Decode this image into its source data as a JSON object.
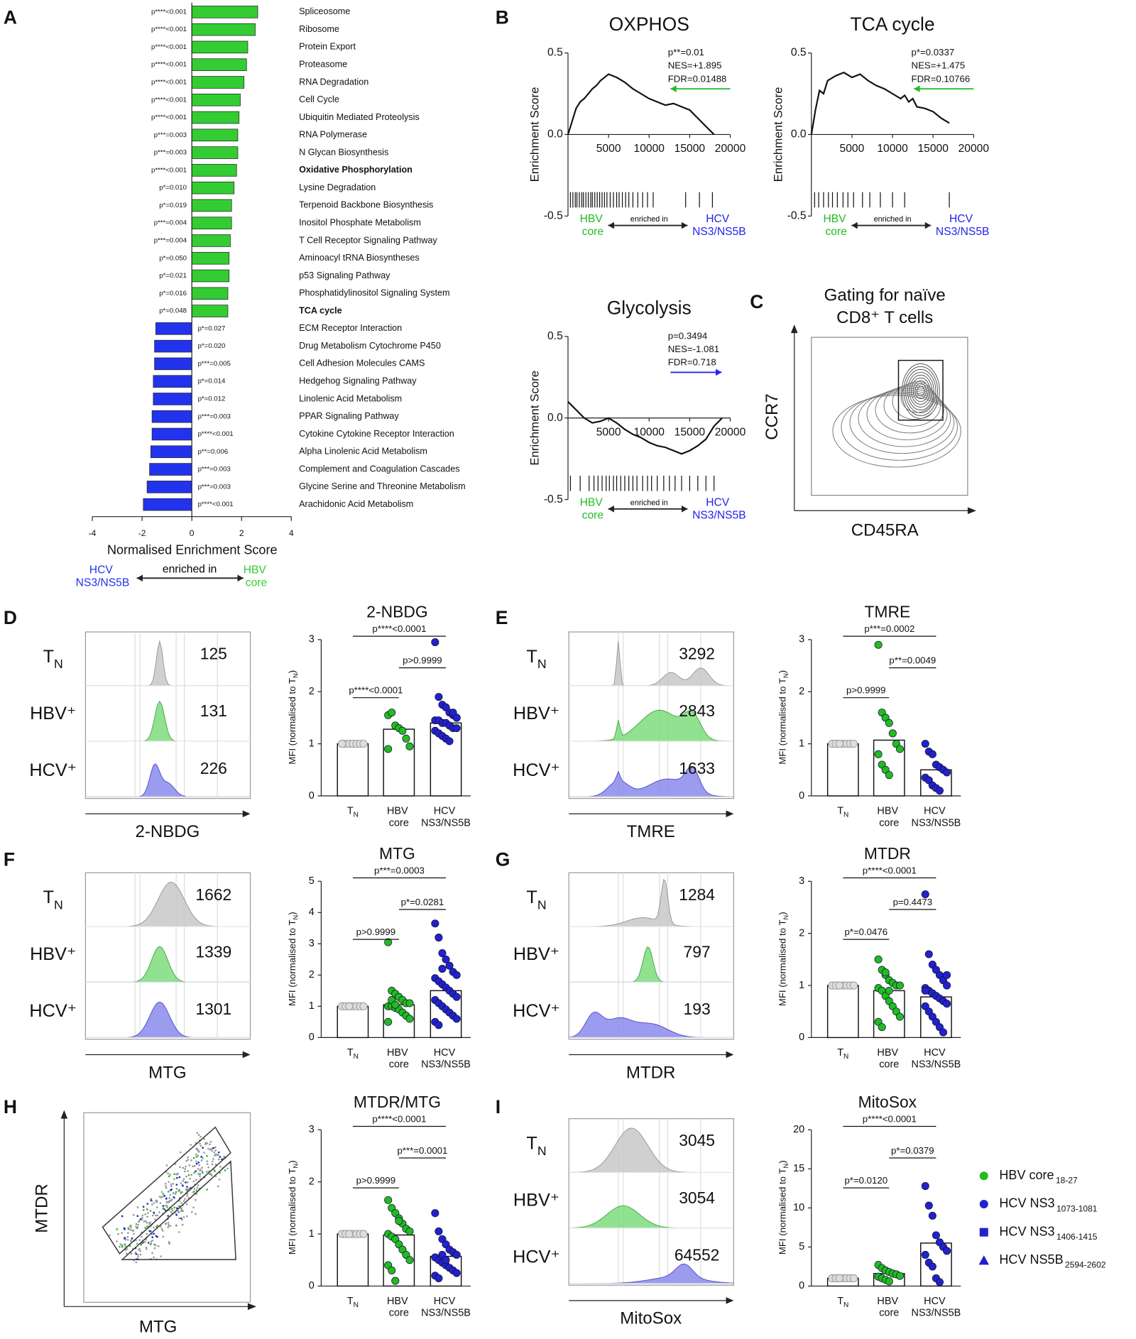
{
  "chart_data": [
    {
      "panel": "A",
      "type": "hbar",
      "categories": [
        "Spliceosome",
        "Ribosome",
        "Protein Export",
        "Proteasome",
        "RNA Degradation",
        "Cell Cycle",
        "Ubiquitin Mediated Proteolysis",
        "RNA Polymerase",
        "N Glycan Biosynthesis",
        "Oxidative Phosphorylation",
        "Lysine Degradation",
        "Terpenoid Backbone Biosynthesis",
        "Inositol Phosphate Metabolism",
        "T Cell Receptor Signaling Pathway",
        "Aminoacyl tRNA Biosyntheses",
        "p53 Signaling Pathway",
        "Phosphatidylinositol Signaling System",
        "TCA cycle",
        "ECM Receptor Interaction",
        "Drug Metabolism Cytochrome P450",
        "Cell Adhesion Molecules CAMS",
        "Hedgehog Signaling Pathway",
        "Linolenic Acid Metabolism",
        "PPAR Signaling Pathway",
        "Cytokine Cytokine Receptor Interaction",
        "Alpha Linolenic Acid Metabolism",
        "Complement and Coagulation Cascades",
        "Glycine Serine and Threonine Metabolism",
        "Arachidonic Acid Metabolism"
      ],
      "values": [
        2.65,
        2.55,
        2.25,
        2.2,
        2.1,
        1.95,
        1.9,
        1.85,
        1.85,
        1.8,
        1.7,
        1.6,
        1.6,
        1.55,
        1.5,
        1.5,
        1.45,
        1.45,
        -1.45,
        -1.5,
        -1.5,
        -1.55,
        -1.55,
        -1.6,
        -1.6,
        -1.65,
        -1.7,
        -1.8,
        -1.95
      ],
      "p_labels": [
        "p****<0.001",
        "p****<0.001",
        "p****<0.001",
        "p****<0.001",
        "p****<0.001",
        "p****<0.001",
        "p****<0.001",
        "p***=0.003",
        "p***=0.003",
        "p****<0.001",
        "p*=0.010",
        "p*=0.019",
        "p***=0.004",
        "p***=0.004",
        "p*=0.050",
        "p*=0.021",
        "p*=0.016",
        "p*=0.048",
        "p*=0.027",
        "p*=0.020",
        "p***=0.005",
        "p*=0.014",
        "p*=0.012",
        "p***=0.003",
        "p****<0.001",
        "p**=0.006",
        "p***=0.003",
        "p***=0.003",
        "p****<0.001"
      ],
      "bold": [
        9,
        17
      ],
      "positive_color": "#33cc33",
      "negative_color": "#2233ee",
      "xlabel": "Normalised Enrichment Score",
      "xlim": [
        -4,
        4
      ],
      "xticks": [
        -4,
        -2,
        0,
        2,
        4
      ],
      "direction_labels": [
        "HCV NS3/NS5B",
        "enriched in",
        "HBV core"
      ],
      "direction_colors": [
        "#2233ee",
        "#000000",
        "#33cc33"
      ]
    },
    {
      "panel": "B",
      "type": "gsea",
      "title": "OXPHOS",
      "ylabel": "Enrichment Score",
      "x": [
        0,
        500,
        1000,
        1500,
        2000,
        2500,
        3000,
        3500,
        4000,
        4500,
        5000,
        5500,
        6000,
        7000,
        8000,
        9000,
        10000,
        11000,
        12000,
        13000,
        14000,
        15000,
        16000,
        17000,
        18000
      ],
      "values": [
        0,
        0.08,
        0.16,
        0.2,
        0.22,
        0.25,
        0.28,
        0.3,
        0.33,
        0.35,
        0.37,
        0.36,
        0.35,
        0.32,
        0.28,
        0.25,
        0.22,
        0.2,
        0.18,
        0.19,
        0.17,
        0.15,
        0.1,
        0.05,
        0
      ],
      "hits": [
        300,
        600,
        900,
        1100,
        1400,
        1700,
        1900,
        2200,
        2500,
        2800,
        3000,
        3300,
        3600,
        3900,
        4200,
        4500,
        4800,
        5200,
        5600,
        6000,
        6300,
        6700,
        7100,
        7500,
        8000,
        8600,
        9200,
        9800,
        10500,
        14500,
        16200,
        17800
      ],
      "xlim": [
        0,
        20000
      ],
      "xticks": [
        5000,
        10000,
        15000,
        20000
      ],
      "ylim": [
        -0.5,
        0.5
      ],
      "yticks": [
        -0.5,
        {
          "value": 0,
          "label": "0.0"
        },
        0.5
      ],
      "stats": [
        "p**=0.01",
        "NES=+1.895",
        "FDR=0.01488"
      ],
      "arrow": "left",
      "arrow_color": "#22bb22",
      "direction_labels": [
        "HBV core",
        "enriched in",
        "HCV NS3/NS5B"
      ],
      "direction_colors": [
        "#22bb22",
        "#000000",
        "#2222ee"
      ]
    },
    {
      "type": "gsea",
      "title": "TCA cycle",
      "ylabel": "Enrichment Score",
      "x": [
        0,
        500,
        1000,
        1500,
        2000,
        3000,
        4000,
        5000,
        6000,
        7000,
        8000,
        9000,
        10000,
        11000,
        11500,
        12000,
        12500,
        13000,
        14000,
        15000,
        16000,
        17000
      ],
      "values": [
        0,
        0.15,
        0.27,
        0.25,
        0.33,
        0.36,
        0.38,
        0.35,
        0.37,
        0.33,
        0.3,
        0.28,
        0.25,
        0.22,
        0.24,
        0.2,
        0.22,
        0.17,
        0.16,
        0.14,
        0.1,
        0.07
      ],
      "hits": [
        400,
        900,
        1500,
        2100,
        2600,
        3200,
        3900,
        4500,
        5200,
        6300,
        7200,
        8500,
        10000,
        11500,
        17000
      ],
      "xlim": [
        0,
        20000
      ],
      "xticks": [
        5000,
        10000,
        15000,
        20000
      ],
      "ylim": [
        -0.5,
        0.5
      ],
      "yticks": [
        -0.5,
        {
          "value": 0,
          "label": "0.0"
        },
        0.5
      ],
      "stats": [
        "p*=0.0337",
        "NES=+1.475",
        "FDR=0.10766"
      ],
      "arrow": "left",
      "arrow_color": "#22bb22",
      "direction_labels": [
        "HBV core",
        "enriched in",
        "HCV NS3/NS5B"
      ],
      "direction_colors": [
        "#22bb22",
        "#000000",
        "#2222ee"
      ]
    },
    {
      "type": "gsea",
      "title": "Glycolysis",
      "ylabel": "Enrichment Score",
      "x": [
        0,
        1000,
        2000,
        3000,
        4000,
        5000,
        6000,
        7000,
        8000,
        9000,
        10000,
        11000,
        12000,
        13000,
        14000,
        15000,
        16000,
        17000,
        18000,
        19000
      ],
      "values": [
        0.1,
        0.05,
        0,
        -0.03,
        -0.02,
        0,
        -0.03,
        -0.07,
        -0.1,
        -0.12,
        -0.15,
        -0.17,
        -0.18,
        -0.2,
        -0.22,
        -0.2,
        -0.17,
        -0.13,
        -0.05,
        0
      ],
      "hits": [
        300,
        1500,
        2600,
        3200,
        3700,
        4200,
        4700,
        5100,
        5600,
        6000,
        6500,
        7000,
        7500,
        8000,
        8500,
        9200,
        9800,
        10300,
        11000,
        11800,
        12500,
        13200,
        14000,
        15000,
        16000,
        17000,
        18000
      ],
      "xlim": [
        0,
        20000
      ],
      "xticks": [
        5000,
        10000,
        15000,
        20000
      ],
      "ylim": [
        -0.5,
        0.5
      ],
      "yticks": [
        -0.5,
        {
          "value": 0,
          "label": "0.0"
        },
        0.5
      ],
      "stats": [
        "p=0.3494",
        "NES=-1.081",
        "FDR=0.718"
      ],
      "arrow": "right",
      "arrow_color": "#2222ee",
      "direction_labels": [
        "HBV core",
        "enriched in",
        "HCV NS3/NS5B"
      ],
      "direction_colors": [
        "#22bb22",
        "#000000",
        "#2222ee"
      ]
    },
    {
      "panel": "C",
      "type": "contour",
      "title": [
        "Gating for naïve",
        "CD8⁺ T cells"
      ],
      "xlabel": "CD45RA",
      "ylabel": "CCR7"
    },
    {
      "panel": "D",
      "type": "histogram-stack",
      "categories": [
        "TN",
        "HBV⁺",
        "HCV⁺"
      ],
      "values": [
        125,
        131,
        226
      ],
      "xlabel": "2-NBDG",
      "colors": [
        "#c8c8c8",
        "#7ddc7d",
        "#8a8aee"
      ]
    },
    {
      "type": "dot-bar",
      "title": "2-NBDG",
      "ylabel": "MFI (normalised to TN)",
      "categories": [
        "TN",
        "HBV core",
        "HCV NS3/NS5B"
      ],
      "values": [
        1,
        1.28,
        1.4
      ],
      "points": [
        [
          1,
          1,
          1,
          1,
          1,
          1,
          1,
          1
        ],
        [
          1.55,
          1.6,
          1.35,
          1.3,
          1.25,
          1.1,
          0.95,
          0.9
        ],
        [
          2.95,
          1.9,
          1.75,
          1.7,
          1.6,
          1.55,
          1.5,
          1.45,
          1.45,
          1.4,
          1.4,
          1.35,
          1.3,
          1.3,
          1.25,
          1.2,
          1.15,
          1.1,
          1.05,
          1.6,
          1.5
        ]
      ],
      "point_colors": [
        "#dddddd",
        "#22bb22",
        "#2222cc"
      ],
      "ylim": [
        0,
        3
      ],
      "yticks": [
        0,
        1,
        2,
        3
      ],
      "comparisons": [
        {
          "groups": [
            0,
            2
          ],
          "label": "p****<0.0001"
        },
        {
          "groups": [
            1,
            2
          ],
          "label": "p>0.9999"
        },
        {
          "groups": [
            0,
            1
          ],
          "label": "p****<0.0001"
        }
      ]
    },
    {
      "panel": "E",
      "type": "histogram-stack",
      "categories": [
        "TN",
        "HBV⁺",
        "HCV⁺"
      ],
      "values": [
        3292,
        2843,
        1633
      ],
      "xlabel": "TMRE",
      "colors": [
        "#c8c8c8",
        "#7ddc7d",
        "#8a8aee"
      ]
    },
    {
      "type": "dot-bar",
      "title": "TMRE",
      "ylabel": "MFI (normalised to TN)",
      "categories": [
        "TN",
        "HBV core",
        "HCV NS3/NS5B"
      ],
      "values": [
        1,
        1.07,
        0.5
      ],
      "points": [
        [
          1,
          1,
          1,
          1,
          1,
          1,
          1,
          1,
          1,
          1
        ],
        [
          2.9,
          1.6,
          1.5,
          1.4,
          1.2,
          1,
          0.9,
          0.8,
          0.6,
          0.5,
          0.4
        ],
        [
          1,
          0.85,
          0.8,
          0.6,
          0.55,
          0.5,
          0.45,
          0.35,
          0.3,
          0.2,
          0.15,
          0.1
        ]
      ],
      "point_colors": [
        "#dddddd",
        "#22bb22",
        "#2222cc"
      ],
      "ylim": [
        0,
        3
      ],
      "yticks": [
        0,
        1,
        2,
        3
      ],
      "comparisons": [
        {
          "groups": [
            0,
            2
          ],
          "label": "p***=0.0002"
        },
        {
          "groups": [
            1,
            2
          ],
          "label": "p**=0.0049"
        },
        {
          "groups": [
            0,
            1
          ],
          "label": "p>0.9999"
        }
      ]
    },
    {
      "panel": "F",
      "type": "histogram-stack",
      "categories": [
        "TN",
        "HBV⁺",
        "HCV⁺"
      ],
      "values": [
        1662,
        1339,
        1301
      ],
      "xlabel": "MTG",
      "colors": [
        "#c8c8c8",
        "#7ddc7d",
        "#8a8aee"
      ]
    },
    {
      "type": "dot-bar",
      "title": "MTG",
      "ylabel": "MFI (normalised to TN)",
      "categories": [
        "TN",
        "HBV core",
        "HCV NS3/NS5B"
      ],
      "values": [
        1,
        1.05,
        1.5
      ],
      "points": [
        [
          1,
          1,
          1,
          1,
          1,
          1,
          1,
          1,
          1,
          1
        ],
        [
          3.05,
          1.5,
          1.4,
          1.3,
          1.2,
          1.1,
          1.1,
          1,
          1,
          0.95,
          0.9,
          0.8,
          0.7,
          0.6,
          0.5,
          1.2,
          1.05
        ],
        [
          3.65,
          3.2,
          2.7,
          2.5,
          2.3,
          2.1,
          2,
          1.9,
          1.8,
          1.7,
          1.6,
          1.5,
          1.4,
          1.3,
          1.2,
          1.1,
          1,
          0.9,
          0.8,
          0.7,
          0.6,
          0.5,
          0.4,
          2.2
        ]
      ],
      "point_colors": [
        "#dddddd",
        "#22bb22",
        "#2222cc"
      ],
      "ylim": [
        0,
        5
      ],
      "yticks": [
        0,
        1,
        2,
        3,
        4,
        5
      ],
      "comparisons": [
        {
          "groups": [
            0,
            2
          ],
          "label": "p***=0.0003"
        },
        {
          "groups": [
            1,
            2
          ],
          "label": "p*=0.0281"
        },
        {
          "groups": [
            0,
            1
          ],
          "label": "p>0.9999"
        }
      ]
    },
    {
      "panel": "G",
      "type": "histogram-stack",
      "categories": [
        "TN",
        "HBV⁺",
        "HCV⁺"
      ],
      "values": [
        1284,
        797,
        193
      ],
      "xlabel": "MTDR",
      "colors": [
        "#c8c8c8",
        "#7ddc7d",
        "#8a8aee"
      ]
    },
    {
      "type": "dot-bar",
      "title": "MTDR",
      "ylabel": "MFI (normalised to TN)",
      "categories": [
        "TN",
        "HBV core",
        "HCV NS3/NS5B"
      ],
      "values": [
        1,
        0.9,
        0.78
      ],
      "points": [
        [
          1,
          1,
          1,
          1,
          1,
          1,
          1,
          1,
          1,
          1
        ],
        [
          1.5,
          1.3,
          1.2,
          1.1,
          1.05,
          1,
          1,
          0.95,
          0.9,
          0.8,
          0.7,
          0.6,
          0.5,
          0.4,
          0.3,
          0.2,
          1.25,
          0.9
        ],
        [
          2.75,
          1.6,
          1.4,
          1.3,
          1.2,
          1.1,
          1,
          0.95,
          0.9,
          0.85,
          0.8,
          0.75,
          0.7,
          0.65,
          0.6,
          0.5,
          0.4,
          0.3,
          0.2,
          0.1,
          1.2,
          0.9
        ]
      ],
      "point_colors": [
        "#dddddd",
        "#22bb22",
        "#2222cc"
      ],
      "ylim": [
        0,
        3
      ],
      "yticks": [
        0,
        1,
        2,
        3
      ],
      "comparisons": [
        {
          "groups": [
            0,
            2
          ],
          "label": "p****<0.0001"
        },
        {
          "groups": [
            1,
            2
          ],
          "label": "p=0.4473"
        },
        {
          "groups": [
            0,
            1
          ],
          "label": "p*=0.0476"
        }
      ]
    },
    {
      "panel": "H",
      "type": "gate-scatter",
      "xlabel": "MTG",
      "ylabel": "MTDR"
    },
    {
      "type": "dot-bar",
      "title": "MTDR/MTG",
      "ylabel": "MFI (normalised to TN)",
      "categories": [
        "TN",
        "HBV core",
        "HCV NS3/NS5B"
      ],
      "values": [
        1,
        0.98,
        0.57
      ],
      "points": [
        [
          1,
          1,
          1,
          1,
          1,
          1,
          1,
          1,
          1,
          1
        ],
        [
          1.65,
          1.5,
          1.4,
          1.3,
          1.2,
          1.1,
          1.05,
          1,
          0.95,
          0.9,
          0.8,
          0.7,
          0.6,
          0.5,
          0.4,
          0.3,
          0.1,
          1.25
        ],
        [
          1.4,
          1.05,
          0.9,
          0.8,
          0.7,
          0.65,
          0.6,
          0.55,
          0.5,
          0.45,
          0.4,
          0.35,
          0.3,
          0.25,
          0.2,
          0.15,
          0.6,
          0.5
        ]
      ],
      "point_colors": [
        "#dddddd",
        "#22bb22",
        "#2222cc"
      ],
      "ylim": [
        0,
        3
      ],
      "yticks": [
        0,
        1,
        2,
        3
      ],
      "comparisons": [
        {
          "groups": [
            0,
            2
          ],
          "label": "p****<0.0001"
        },
        {
          "groups": [
            1,
            2
          ],
          "label": "p***=0.0001"
        },
        {
          "groups": [
            0,
            1
          ],
          "label": "p>0.9999"
        }
      ]
    },
    {
      "panel": "I",
      "type": "histogram-stack",
      "categories": [
        "TN",
        "HBV⁺",
        "HCV⁺"
      ],
      "values": [
        3045,
        3054,
        64552
      ],
      "xlabel": "MitoSox",
      "colors": [
        "#c8c8c8",
        "#7ddc7d",
        "#8a8aee"
      ]
    },
    {
      "type": "dot-bar",
      "title": "MitoSox",
      "ylabel": "MFI (normalised to TN)",
      "categories": [
        "TN",
        "HBV core",
        "HCV NS3/NS5B"
      ],
      "values": [
        1,
        1.6,
        5.5
      ],
      "points": [
        [
          1,
          1,
          1,
          1,
          1,
          1,
          1,
          1,
          1,
          1
        ],
        [
          2.7,
          2.3,
          2,
          1.8,
          1.6,
          1.5,
          1.3,
          1.2,
          1,
          0.8,
          0.6
        ],
        [
          12.8,
          10.3,
          9,
          6.5,
          5.6,
          5,
          4.5,
          4,
          3,
          2.5,
          1,
          0.5
        ]
      ],
      "point_colors": [
        "#dddddd",
        "#22bb22",
        "#2222cc"
      ],
      "ylim": [
        0,
        20
      ],
      "yticks": [
        0,
        5,
        10,
        15,
        20
      ],
      "comparisons": [
        {
          "groups": [
            0,
            2
          ],
          "label": "p****<0.0001"
        },
        {
          "groups": [
            1,
            2
          ],
          "label": "p*=0.0379"
        },
        {
          "groups": [
            0,
            1
          ],
          "label": "p*=0.0120"
        }
      ],
      "legend": [
        {
          "name": "HBV core",
          "sub": "18-27",
          "color": "#22bb22",
          "marker": "circle"
        },
        {
          "name": "HCV NS3",
          "sub": "1073-1081",
          "color": "#2222cc",
          "marker": "circle"
        },
        {
          "name": "HCV NS3",
          "sub": "1406-1415",
          "color": "#2222cc",
          "marker": "square"
        },
        {
          "name": "HCV NS5B",
          "sub": "2594-2602",
          "color": "#2222cc",
          "marker": "triangle"
        }
      ]
    }
  ]
}
